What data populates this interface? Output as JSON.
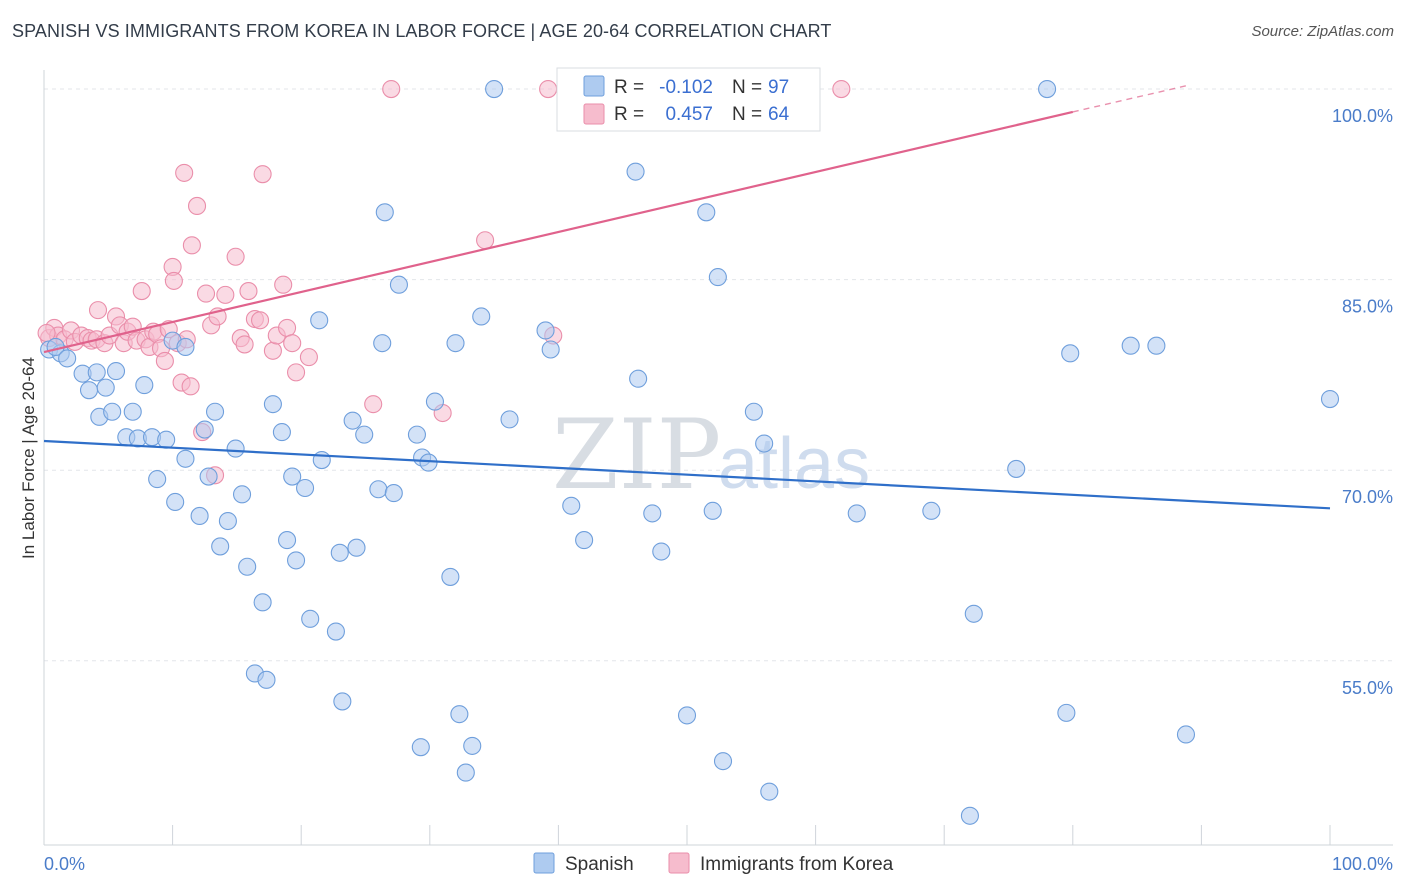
{
  "title": "SPANISH VS IMMIGRANTS FROM KOREA IN LABOR FORCE | AGE 20-64 CORRELATION CHART",
  "source": "Source: ZipAtlas.com",
  "watermark": {
    "zip": "ZIP",
    "atlas": "atlas"
  },
  "colors": {
    "spanish_fill": "#aecbf0",
    "spanish_stroke": "#6f9fdc",
    "spanish_line": "#2f6fc9",
    "korea_fill": "#f6bccd",
    "korea_stroke": "#ea8eaa",
    "korea_line": "#e0628c",
    "grid": "#e3e6ea",
    "tick": "#4a7cc9"
  },
  "stats": {
    "r_label": "R =",
    "n_label": "N =",
    "spanish": {
      "r": "-0.102",
      "n": "97"
    },
    "korea": {
      "r": "0.457",
      "n": "64"
    }
  },
  "legend": [
    "Spanish",
    "Immigrants from Korea"
  ],
  "chart_data": {
    "type": "scatter",
    "xlabel": "",
    "ylabel": "In Labor Force | Age 20-64",
    "xlim": [
      0,
      100
    ],
    "ylim": [
      40.5,
      101.5
    ],
    "x_tick_labels": [
      "0.0%",
      "100.0%"
    ],
    "y_ticks": [
      55,
      70,
      85,
      100
    ],
    "y_tick_labels": [
      "55.0%",
      "70.0%",
      "85.0%",
      "100.0%"
    ],
    "grid": true,
    "legend_position": "bottom-center",
    "series": [
      {
        "name": "Spanish",
        "trend": {
          "x": [
            0,
            100
          ],
          "y": [
            72.3,
            67.0
          ]
        },
        "points": [
          [
            0.4,
            79.5
          ],
          [
            1.3,
            79.2
          ],
          [
            0.9,
            79.7
          ],
          [
            1.8,
            78.8
          ],
          [
            3.0,
            77.6
          ],
          [
            3.5,
            76.3
          ],
          [
            4.1,
            77.7
          ],
          [
            4.8,
            76.5
          ],
          [
            5.6,
            77.8
          ],
          [
            4.3,
            74.2
          ],
          [
            5.3,
            74.6
          ],
          [
            6.9,
            74.6
          ],
          [
            7.8,
            76.7
          ],
          [
            6.4,
            72.6
          ],
          [
            7.3,
            72.5
          ],
          [
            8.4,
            72.6
          ],
          [
            9.5,
            72.4
          ],
          [
            8.8,
            69.3
          ],
          [
            10.0,
            80.2
          ],
          [
            11.0,
            79.7
          ],
          [
            10.2,
            67.5
          ],
          [
            11.0,
            70.9
          ],
          [
            12.1,
            66.4
          ],
          [
            12.5,
            73.2
          ],
          [
            12.8,
            69.5
          ],
          [
            13.3,
            74.6
          ],
          [
            13.7,
            64.0
          ],
          [
            14.3,
            66.0
          ],
          [
            14.9,
            71.7
          ],
          [
            15.4,
            68.1
          ],
          [
            15.8,
            62.4
          ],
          [
            16.4,
            54.0
          ],
          [
            17.0,
            59.6
          ],
          [
            17.3,
            53.5
          ],
          [
            17.8,
            75.2
          ],
          [
            18.5,
            73.0
          ],
          [
            18.9,
            64.5
          ],
          [
            19.3,
            69.5
          ],
          [
            19.6,
            62.9
          ],
          [
            20.3,
            68.6
          ],
          [
            20.7,
            58.3
          ],
          [
            21.4,
            81.8
          ],
          [
            21.6,
            70.8
          ],
          [
            22.7,
            57.3
          ],
          [
            23.0,
            63.5
          ],
          [
            23.2,
            51.8
          ],
          [
            24.0,
            73.9
          ],
          [
            24.3,
            63.9
          ],
          [
            24.9,
            72.8
          ],
          [
            26.0,
            68.5
          ],
          [
            26.5,
            90.3
          ],
          [
            26.3,
            80.0
          ],
          [
            27.2,
            68.2
          ],
          [
            27.6,
            84.6
          ],
          [
            29.0,
            72.8
          ],
          [
            29.4,
            71.0
          ],
          [
            29.9,
            70.6
          ],
          [
            29.3,
            48.2
          ],
          [
            30.4,
            75.4
          ],
          [
            31.6,
            61.6
          ],
          [
            32.0,
            80.0
          ],
          [
            32.3,
            50.8
          ],
          [
            32.8,
            46.2
          ],
          [
            33.3,
            48.3
          ],
          [
            34.0,
            82.1
          ],
          [
            35.0,
            100.0
          ],
          [
            36.2,
            74.0
          ],
          [
            39.0,
            81.0
          ],
          [
            39.4,
            79.5
          ],
          [
            41.0,
            67.2
          ],
          [
            42.0,
            64.5
          ],
          [
            44.0,
            100.0
          ],
          [
            46.0,
            93.5
          ],
          [
            46.2,
            77.2
          ],
          [
            47.3,
            66.6
          ],
          [
            48.0,
            63.6
          ],
          [
            50.0,
            50.7
          ],
          [
            51.5,
            90.3
          ],
          [
            52.0,
            66.8
          ],
          [
            52.4,
            85.2
          ],
          [
            52.8,
            47.1
          ],
          [
            55.2,
            74.6
          ],
          [
            56.0,
            72.1
          ],
          [
            56.4,
            44.7
          ],
          [
            63.2,
            66.6
          ],
          [
            69.0,
            66.8
          ],
          [
            72.0,
            42.8
          ],
          [
            72.3,
            58.7
          ],
          [
            75.6,
            70.1
          ],
          [
            78.0,
            100.0
          ],
          [
            79.5,
            50.9
          ],
          [
            79.8,
            79.2
          ],
          [
            84.5,
            79.8
          ],
          [
            86.5,
            79.8
          ],
          [
            88.8,
            49.2
          ],
          [
            100.0,
            75.6
          ]
        ]
      },
      {
        "name": "Immigrants from Korea",
        "trend": {
          "x": [
            0,
            80
          ],
          "y": [
            79.3,
            98.2
          ]
        },
        "trend_dashed": {
          "x": [
            80,
            89
          ],
          "y": [
            98.2,
            100.3
          ]
        },
        "points": [
          [
            0.4,
            80.4
          ],
          [
            0.8,
            81.2
          ],
          [
            1.1,
            80.6
          ],
          [
            1.6,
            80.3
          ],
          [
            2.1,
            81.0
          ],
          [
            2.4,
            80.1
          ],
          [
            2.9,
            80.6
          ],
          [
            3.4,
            80.4
          ],
          [
            3.7,
            80.2
          ],
          [
            4.1,
            80.3
          ],
          [
            4.2,
            82.6
          ],
          [
            4.7,
            80.0
          ],
          [
            5.1,
            80.6
          ],
          [
            5.6,
            82.1
          ],
          [
            5.9,
            81.4
          ],
          [
            6.2,
            80.0
          ],
          [
            6.5,
            80.9
          ],
          [
            6.9,
            81.3
          ],
          [
            7.2,
            80.2
          ],
          [
            7.6,
            84.1
          ],
          [
            7.9,
            80.3
          ],
          [
            8.2,
            79.7
          ],
          [
            8.5,
            80.9
          ],
          [
            8.8,
            80.7
          ],
          [
            9.1,
            79.6
          ],
          [
            9.4,
            78.6
          ],
          [
            9.7,
            81.1
          ],
          [
            10.0,
            86.0
          ],
          [
            10.1,
            84.9
          ],
          [
            10.4,
            80.0
          ],
          [
            10.7,
            76.9
          ],
          [
            10.9,
            93.4
          ],
          [
            11.1,
            80.3
          ],
          [
            11.4,
            76.6
          ],
          [
            11.5,
            87.7
          ],
          [
            11.9,
            90.8
          ],
          [
            12.3,
            73.0
          ],
          [
            12.6,
            83.9
          ],
          [
            13.0,
            81.4
          ],
          [
            13.3,
            69.6
          ],
          [
            13.5,
            82.1
          ],
          [
            14.1,
            83.8
          ],
          [
            14.9,
            86.8
          ],
          [
            15.3,
            80.4
          ],
          [
            15.6,
            79.9
          ],
          [
            15.9,
            84.1
          ],
          [
            16.4,
            81.9
          ],
          [
            16.8,
            81.8
          ],
          [
            17.0,
            93.3
          ],
          [
            17.8,
            79.4
          ],
          [
            18.1,
            80.6
          ],
          [
            18.6,
            84.6
          ],
          [
            18.9,
            81.2
          ],
          [
            19.3,
            80.0
          ],
          [
            19.6,
            77.7
          ],
          [
            20.6,
            78.9
          ],
          [
            25.6,
            75.2
          ],
          [
            27.0,
            100.0
          ],
          [
            31.0,
            74.5
          ],
          [
            34.3,
            88.1
          ],
          [
            39.2,
            100.0
          ],
          [
            39.6,
            80.6
          ],
          [
            62.0,
            100.0
          ],
          [
            0.2,
            80.8
          ]
        ]
      }
    ]
  }
}
